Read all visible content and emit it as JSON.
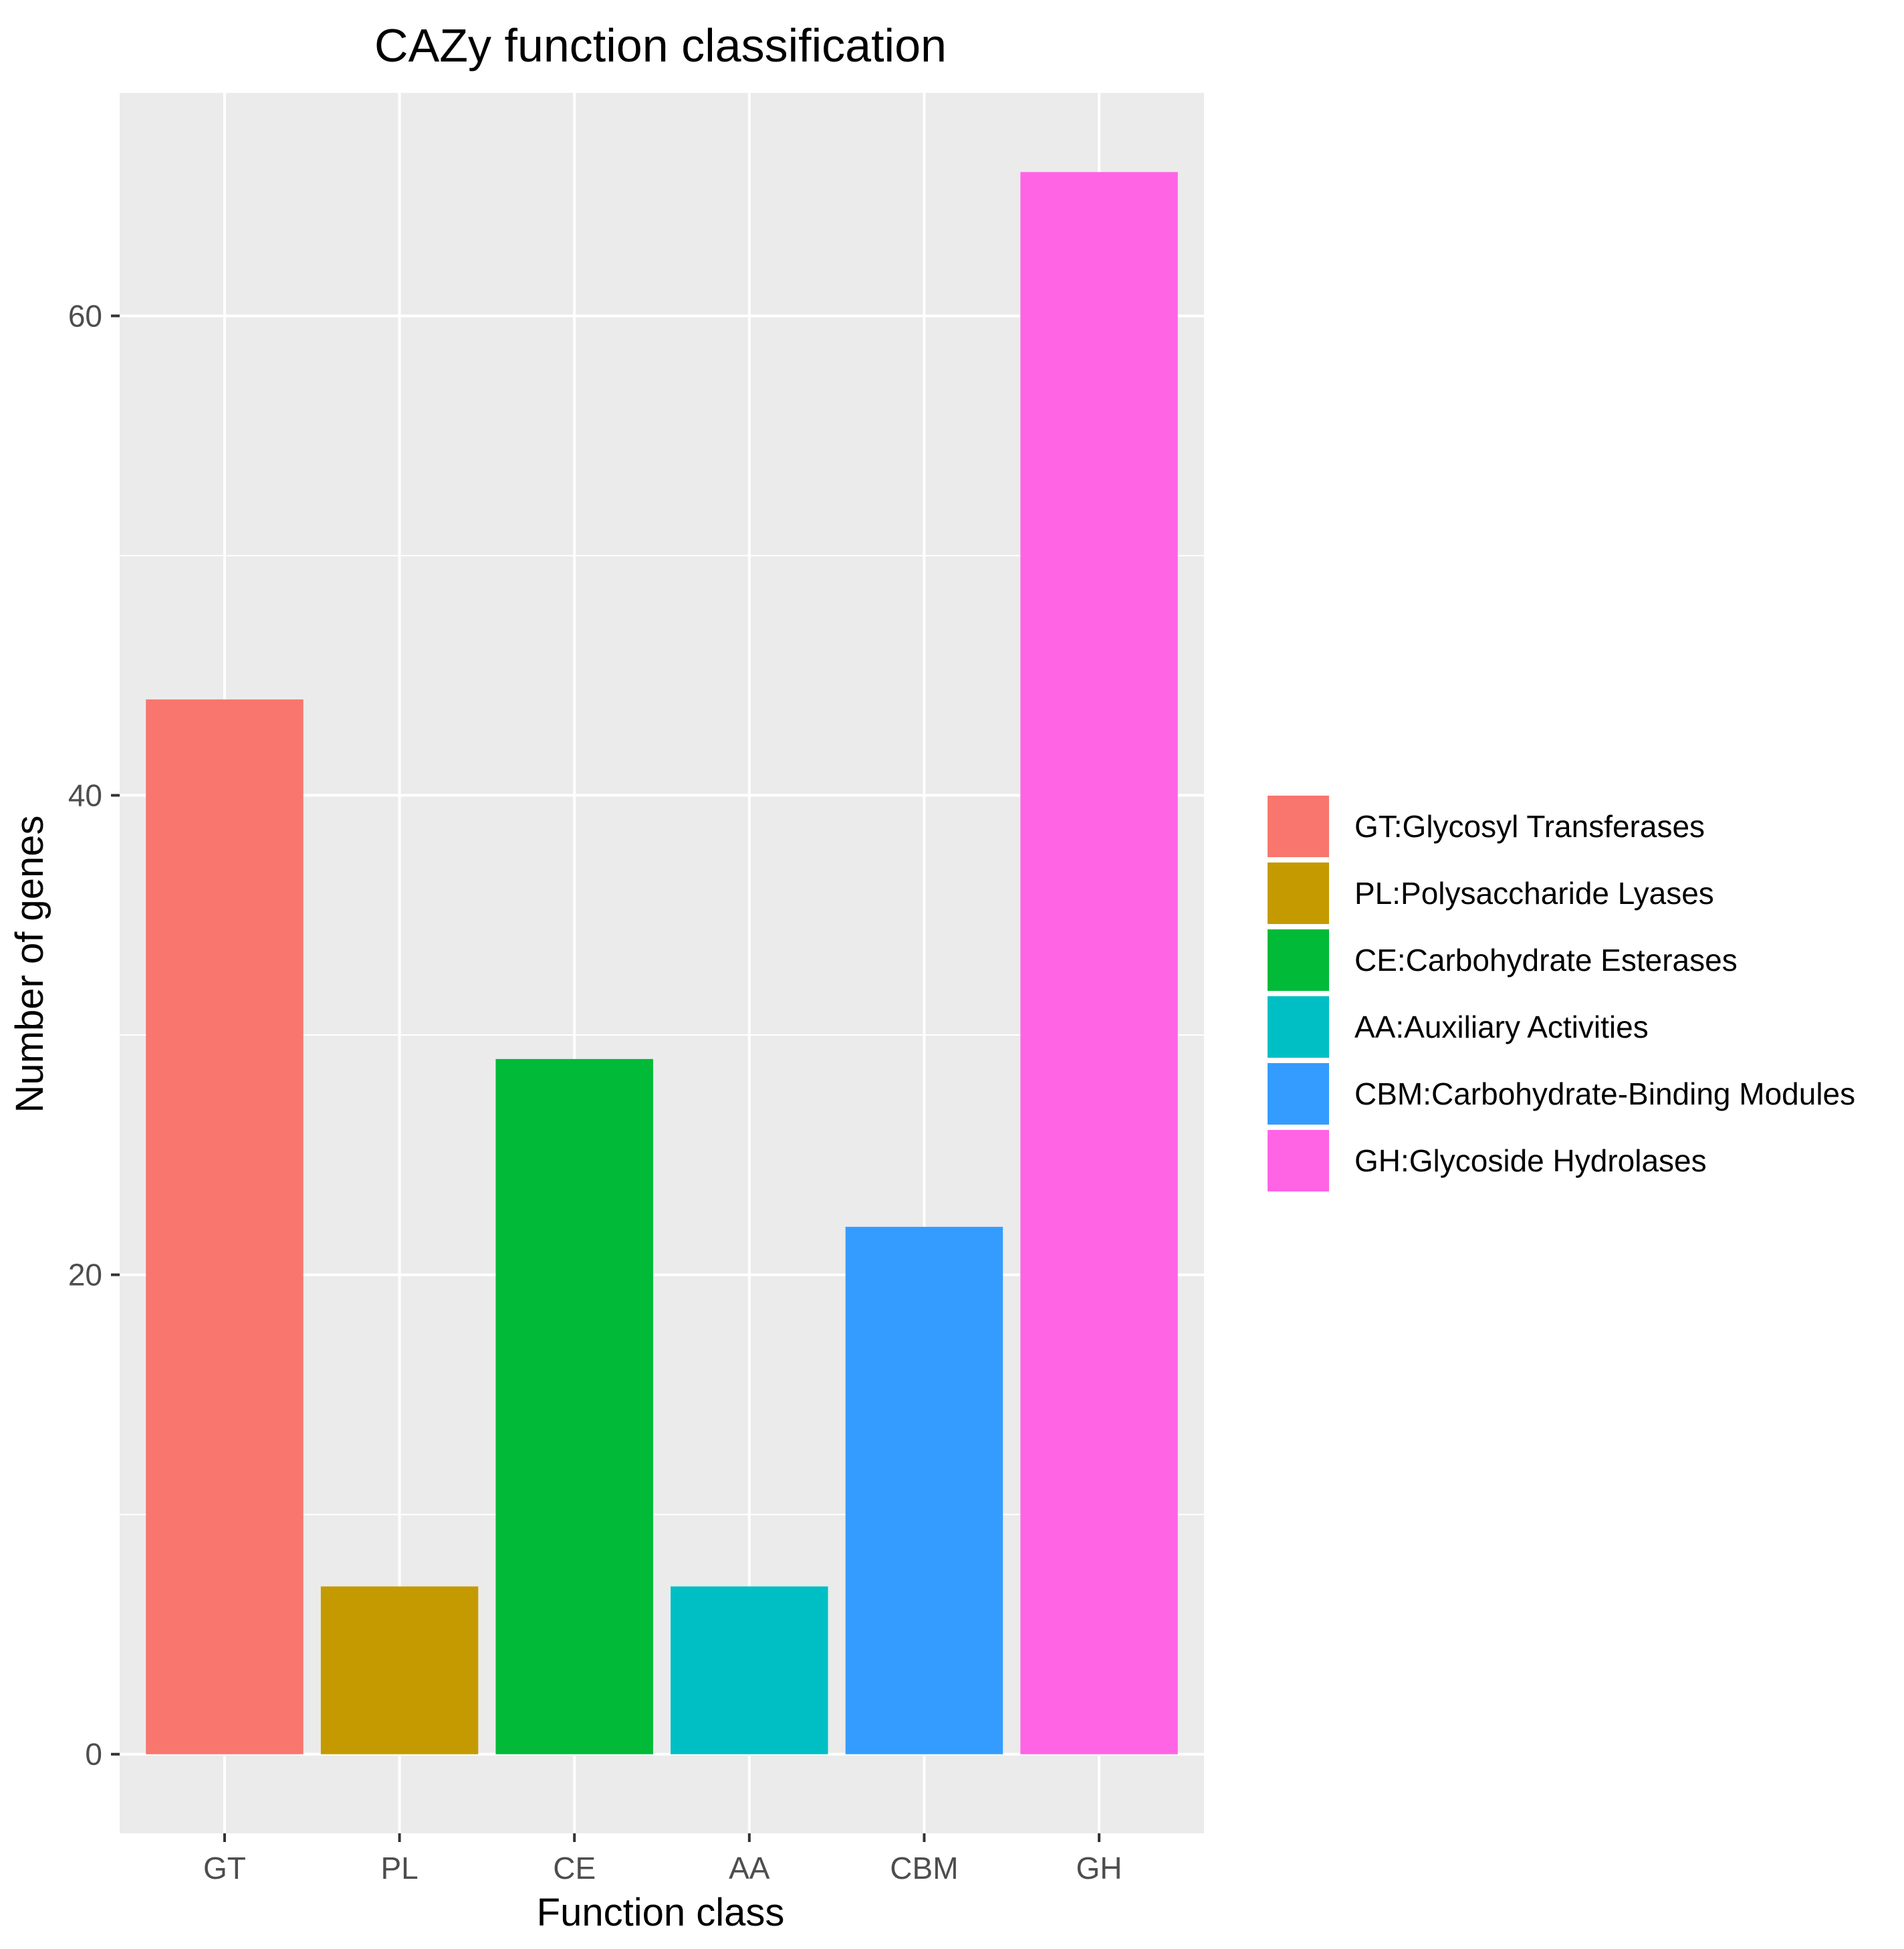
{
  "chart_data": {
    "type": "bar",
    "title": "CAZy function classification",
    "xlabel": "Function class",
    "ylabel": "Number of genes",
    "categories": [
      "GT",
      "PL",
      "CE",
      "AA",
      "CBM",
      "GH"
    ],
    "values": [
      44,
      7,
      29,
      7,
      22,
      66
    ],
    "colors": [
      "#F8766D",
      "#C49A00",
      "#00BA38",
      "#00BFC4",
      "#359CFF",
      "#FF64E5"
    ],
    "ylim": [
      -3.3,
      69.3
    ],
    "y_ticks": [
      0,
      20,
      40,
      60
    ],
    "y_tick_labels": [
      "0",
      "20",
      "40",
      "60"
    ],
    "y_minor_ticks": [
      10,
      30,
      50
    ],
    "grid": true,
    "panel_background": "#EBEBEB",
    "grid_color": "#FFFFFF",
    "legend": {
      "position": "right",
      "entries": [
        "GT:Glycosyl Transferases",
        "PL:Polysaccharide Lyases",
        "CE:Carbohydrate Esterases",
        "AA:Auxiliary Activities",
        "CBM:Carbohydrate-Binding Modules",
        "GH:Glycoside Hydrolases"
      ]
    }
  }
}
